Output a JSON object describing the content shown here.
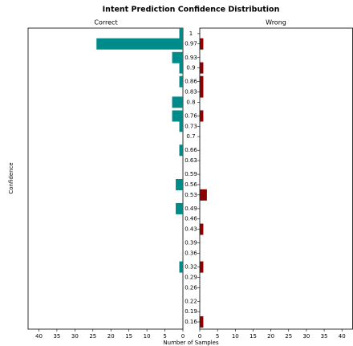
{
  "chart_data": {
    "type": "bar",
    "orientation": "horizontal",
    "title": "Intent Prediction Confidence Distribution",
    "x_label": "Number of Samples",
    "y_label": "Confidence",
    "y": [
      1.0,
      0.97,
      0.93,
      0.9,
      0.86,
      0.83,
      0.8,
      0.76,
      0.73,
      0.66,
      0.56,
      0.53,
      0.49,
      0.43,
      0.32,
      0.16
    ],
    "series": [
      {
        "name": "Correct",
        "color": "#008b8b",
        "values": [
          1,
          24,
          3,
          1,
          1,
          0,
          3,
          3,
          1,
          1,
          2,
          0,
          2,
          0,
          1,
          0
        ]
      },
      {
        "name": "Wrong",
        "color": "#8b0000",
        "values": [
          0,
          1,
          0,
          1,
          1,
          1,
          0,
          1,
          0,
          0,
          0,
          2,
          0,
          1,
          1,
          1
        ]
      }
    ],
    "xlim": [
      0,
      43
    ],
    "xticks": [
      0,
      5,
      10,
      15,
      20,
      25,
      30,
      35,
      40
    ],
    "ylim": [
      0.139,
      1.016
    ],
    "yticks": [
      1.0,
      0.97,
      0.93,
      0.9,
      0.86,
      0.83,
      0.8,
      0.76,
      0.73,
      0.7,
      0.66,
      0.63,
      0.59,
      0.56,
      0.53,
      0.49,
      0.46,
      0.43,
      0.39,
      0.36,
      0.32,
      0.29,
      0.26,
      0.22,
      0.19,
      0.16
    ],
    "grid": false
  }
}
